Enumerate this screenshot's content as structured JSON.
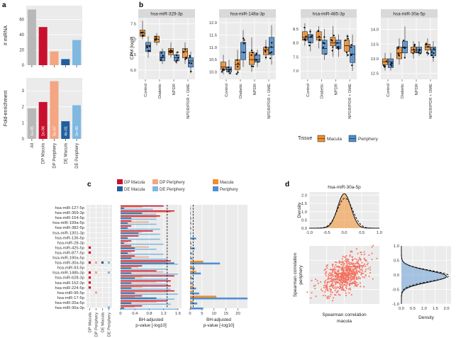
{
  "panel_letters": [
    "a",
    "b",
    "c",
    "d"
  ],
  "colors": {
    "all": "#b8b8b8",
    "dp_macula": "#c8102e",
    "dp_periphery": "#f4a582",
    "de_macula": "#1f5f9e",
    "de_periphery": "#7fb8e0",
    "macula": "#f28e2b",
    "periphery": "#4e8fd1",
    "strip": "#d9d9d9",
    "panel_bg": "#ebebeb",
    "scatter": "#f46d5c"
  },
  "chart_data": [
    {
      "id": "a-top",
      "type": "bar",
      "ylabel": "# miRNA",
      "categories": [
        "All",
        "DP Macula",
        "DP Periphery",
        "DE Macula",
        "DE Periphery"
      ],
      "values": [
        73,
        50,
        18,
        8,
        33
      ],
      "yticks": [
        0,
        20,
        40,
        60
      ],
      "ylim": [
        0,
        78
      ]
    },
    {
      "id": "a-bottom",
      "type": "bar",
      "ylabel": "Fold-enrichment",
      "categories": [
        "All",
        "DP Macula",
        "DP Periphery",
        "DE Macula",
        "DE Periphery"
      ],
      "values": [
        1.9,
        2.3,
        3.6,
        1.1,
        2.1
      ],
      "bar_labels": [
        "1e-05",
        "1e-06",
        "5e-07",
        "4e-01",
        "2e-05"
      ],
      "yticks": [
        0,
        1,
        2,
        3
      ],
      "ylim": [
        0,
        3.8
      ]
    },
    {
      "id": "b",
      "type": "box",
      "ylabel": "CPM [log2]",
      "groups": [
        "Control",
        "Diabetic",
        "NPDR",
        "NPDR/PDR + DME"
      ],
      "tissues": [
        "Macula",
        "Periphery"
      ],
      "legend_title": "Tissue",
      "facets": [
        {
          "title": "hsa-miR-329-3p",
          "ylim": [
            5.7,
            7.7
          ],
          "yticks": [
            6.0,
            6.5,
            7.0,
            7.5
          ],
          "boxes": [
            [
              7.0,
              7.1,
              7.2,
              7.3,
              7.6
            ],
            [
              6.4,
              6.6,
              6.8,
              6.9,
              7.1
            ],
            [
              6.8,
              6.9,
              7.0,
              7.1,
              7.2
            ],
            [
              6.2,
              6.3,
              6.4,
              6.6,
              6.7
            ],
            [
              6.4,
              6.5,
              6.6,
              6.7,
              6.9
            ],
            [
              6.2,
              6.3,
              6.4,
              6.5,
              6.6
            ],
            [
              6.2,
              6.4,
              6.6,
              6.7,
              6.9
            ],
            [
              5.9,
              6.1,
              6.3,
              6.4,
              6.6
            ]
          ]
        },
        {
          "title": "hsa-miR-148a-3p",
          "ylim": [
            9.7,
            12.2
          ],
          "yticks": [
            10.0,
            10.5,
            11.0,
            11.5,
            12.0
          ],
          "boxes": [
            [
              9.9,
              10.1,
              10.2,
              10.4,
              10.7
            ],
            [
              9.9,
              10.0,
              10.1,
              10.2,
              10.5
            ],
            [
              9.9,
              10.1,
              10.3,
              10.5,
              10.9
            ],
            [
              10.2,
              10.5,
              10.8,
              11.2,
              11.7
            ],
            [
              10.0,
              10.3,
              10.5,
              10.8,
              11.4
            ],
            [
              10.2,
              10.4,
              10.5,
              10.7,
              10.9
            ],
            [
              10.5,
              10.7,
              10.9,
              11.0,
              11.3
            ],
            [
              10.3,
              10.7,
              11.0,
              11.4,
              11.9
            ]
          ]
        },
        {
          "title": "hsa-miR-485-3p",
          "ylim": [
            6.7,
            8.9
          ],
          "yticks": [
            7.0,
            7.5,
            8.0,
            8.5
          ],
          "boxes": [
            [
              7.9,
              8.1,
              8.2,
              8.4,
              8.7
            ],
            [
              7.7,
              8.0,
              8.2,
              8.3,
              8.5
            ],
            [
              7.8,
              8.1,
              8.2,
              8.4,
              8.6
            ],
            [
              7.4,
              7.6,
              7.8,
              8.1,
              8.5
            ],
            [
              7.5,
              7.9,
              8.0,
              8.2,
              8.6
            ],
            [
              7.5,
              7.8,
              8.0,
              8.1,
              8.3
            ],
            [
              7.5,
              7.7,
              7.9,
              8.1,
              8.3
            ],
            [
              7.0,
              7.3,
              7.6,
              7.9,
              8.3
            ]
          ]
        },
        {
          "title": "hsa-miR-30a-5p",
          "ylim": [
            12.3,
            14.4
          ],
          "yticks": [
            12.5,
            13.0,
            13.5,
            14.0
          ],
          "boxes": [
            [
              12.6,
              12.8,
              12.9,
              13.0,
              13.2
            ],
            [
              12.6,
              12.7,
              12.9,
              13.0,
              13.2
            ],
            [
              12.8,
              13.0,
              13.2,
              13.4,
              13.7
            ],
            [
              13.0,
              13.2,
              13.4,
              13.6,
              14.1
            ],
            [
              13.0,
              13.2,
              13.3,
              13.4,
              13.6
            ],
            [
              13.1,
              13.2,
              13.3,
              13.4,
              13.6
            ],
            [
              13.1,
              13.3,
              13.4,
              13.5,
              13.7
            ],
            [
              12.9,
              13.1,
              13.3,
              13.4,
              13.6
            ]
          ]
        }
      ]
    },
    {
      "id": "c-dots",
      "type": "dot-matrix",
      "mirnas": [
        "hsa-miR-127-5p",
        "hsa-miR-369-3p",
        "hsa-miR-154-5p",
        "hsa-miR-199a-5p",
        "hsa-miR-382-5p",
        "hsa-miR-1301-3p",
        "hsa-miR-136-5p",
        "hsa-miR-28-3p",
        "hsa-miR-425-5p",
        "hsa-miR-877-5p",
        "hsa-miR-190a-5p",
        "hsa-miR-30a-5p",
        "hsa-miR-93-5p",
        "hsa-miR-148b-3p",
        "hsa-miR-628-3p",
        "hsa-miR-152-3p",
        "hsa-miR-224-5p",
        "hsa-miR-96-5p",
        "hsa-miR-17-5p",
        "hsa-miR-20a-5p",
        "hsa-miR-30a-3p"
      ],
      "columns": [
        "DP Macula",
        "DP Periphery",
        "DE Macula",
        "DE Periphery"
      ],
      "marks": [
        [
          8,
          0
        ],
        [
          9,
          0
        ],
        [
          11,
          0
        ],
        [
          11,
          1
        ],
        [
          11,
          2
        ],
        [
          11,
          3
        ],
        [
          13,
          0
        ],
        [
          13,
          1
        ],
        [
          13,
          3
        ],
        [
          14,
          0
        ],
        [
          15,
          0
        ],
        [
          16,
          0
        ],
        [
          17,
          1
        ],
        [
          20,
          3
        ]
      ]
    },
    {
      "id": "c-bars-left",
      "type": "horizontal-bar",
      "xlabel": "BH-adjusted p-value [-log10]",
      "xticks": [
        0.0,
        0.4,
        0.8,
        1.2,
        1.6
      ],
      "xlim": [
        0,
        1.7
      ],
      "threshold": 1.3,
      "legend": [
        "DP Macula",
        "DP Periphery",
        "DE Macula",
        "DE Periphery"
      ],
      "series": [
        {
          "name": "DP Macula",
          "values": [
            1.2,
            1.5,
            1.1,
            0.3,
            0.3,
            0.9,
            0.5,
            0.3,
            0.3,
            0.4,
            0.4,
            1.4,
            0.6,
            1.0,
            1.5,
            1.4,
            1.4,
            1.5,
            0.6,
            1.3,
            0.6
          ]
        },
        {
          "name": "DP Periphery",
          "values": [
            0.6,
            1.4,
            1.0,
            0.8,
            0.2,
            0.6,
            0.2,
            0.2,
            0.8,
            0.3,
            0.8,
            1.3,
            0.5,
            1.2,
            0.6,
            1.0,
            0.6,
            1.3,
            0.4,
            1.0,
            0.4
          ]
        },
        {
          "name": "DE Macula",
          "values": [
            0.1,
            0.6,
            0.3,
            0.2,
            0.2,
            0.5,
            0.2,
            0.1,
            0.4,
            0.2,
            0.3,
            1.5,
            0.3,
            0.3,
            0.4,
            0.3,
            0.3,
            0.4,
            1.0,
            0.3,
            0.1
          ]
        },
        {
          "name": "DE Periphery",
          "values": [
            0.9,
            1.0,
            1.0,
            1.0,
            1.1,
            1.1,
            1.1,
            1.2,
            1.0,
            1.2,
            1.3,
            1.6,
            1.3,
            1.6,
            1.3,
            1.3,
            1.4,
            1.6,
            1.5,
            1.4,
            1.6
          ]
        }
      ]
    },
    {
      "id": "c-bars-right",
      "type": "horizontal-bar",
      "xlabel": "BH-adjusted p-value [-log10]",
      "xticks": [
        0,
        5,
        10,
        15,
        20
      ],
      "xlim": [
        0,
        24
      ],
      "threshold": 1.3,
      "legend": [
        "Macula",
        "Periphery"
      ],
      "series": [
        {
          "name": "Macula",
          "values": [
            0.1,
            0.2,
            0.2,
            0.3,
            0.2,
            0.2,
            0.2,
            0.3,
            0.5,
            0.3,
            0.4,
            5.5,
            0.8,
            2.5,
            0.6,
            0.5,
            1.3,
            1.5,
            11.0,
            1.2,
            0.6
          ]
        },
        {
          "name": "Periphery",
          "values": [
            0.3,
            0.3,
            0.5,
            0.5,
            0.5,
            0.4,
            2.5,
            0.6,
            2.0,
            1.0,
            1.0,
            12.5,
            2.0,
            4.5,
            1.5,
            1.2,
            2.5,
            3.8,
            24.0,
            3.0,
            5.5
          ]
        }
      ]
    },
    {
      "id": "d-top",
      "type": "density",
      "title": "hsa-miR-30a-5p",
      "ylabel": "Density",
      "xticks": [
        -1.0,
        -0.5,
        0.0,
        0.5,
        1.0
      ],
      "xlim": [
        -1.0,
        1.0
      ],
      "yticks": [
        0.0,
        0.5,
        1.0,
        1.5,
        2.0
      ],
      "ylim": [
        0,
        2.2
      ],
      "mean": 0.0,
      "sd": 0.19
    },
    {
      "id": "d-scatter",
      "type": "scatter",
      "xlabel": "Spearman correlation macula",
      "ylabel": "Spearman correlation periphery",
      "n_points": 600,
      "correlation": 0.5
    },
    {
      "id": "d-right",
      "type": "density",
      "xlabel": "Density",
      "xticks": [
        0.0,
        0.5,
        1.0,
        1.5,
        2.0
      ],
      "xlim": [
        0,
        2.2
      ],
      "yticks": [
        -1.0,
        -0.5,
        0.0,
        0.5,
        1.0
      ],
      "ylim": [
        -1.0,
        1.0
      ],
      "mean": -0.05,
      "sd": 0.2
    }
  ]
}
